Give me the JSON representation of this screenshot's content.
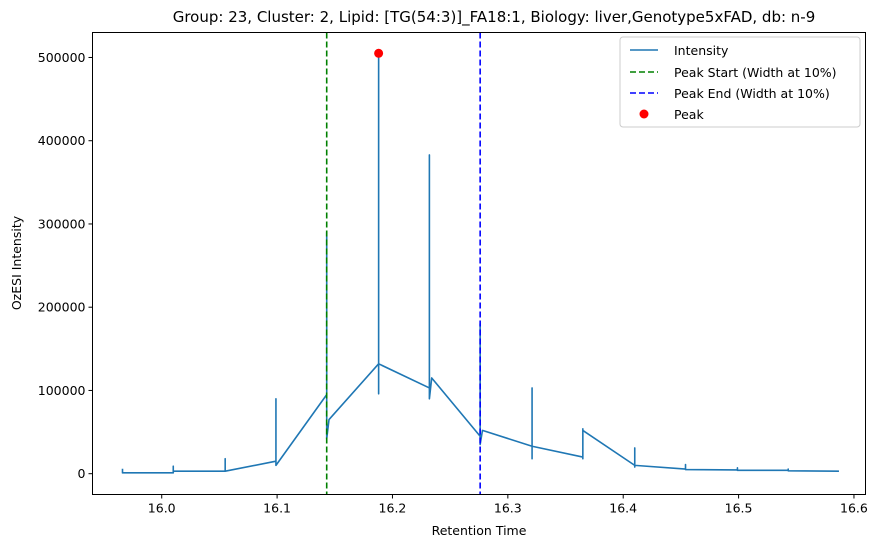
{
  "chart_data": {
    "type": "line",
    "title": "Group: 23, Cluster: 2, Lipid: [TG(54:3)]_FA18:1, Biology: liver,Genotype5xFAD, db: n-9",
    "xlabel": "Retention Time",
    "ylabel": "OzESI Intensity",
    "xlim": [
      15.94,
      16.61
    ],
    "ylim": [
      -25000,
      530000
    ],
    "xticks": [
      16.0,
      16.1,
      16.2,
      16.3,
      16.4,
      16.5,
      16.6
    ],
    "xtick_labels": [
      "16.0",
      "16.1",
      "16.2",
      "16.3",
      "16.4",
      "16.5",
      "16.6"
    ],
    "yticks": [
      0,
      100000,
      200000,
      300000,
      400000,
      500000
    ],
    "ytick_labels": [
      "0",
      "100000",
      "200000",
      "300000",
      "400000",
      "500000"
    ],
    "grid": false,
    "legend_position": "top-right",
    "colors": {
      "intensity": "#1f77b4",
      "peak_start": "#008000",
      "peak_end": "#0000ff",
      "peak": "#ff0000"
    },
    "series": [
      {
        "name": "Intensity",
        "style": "solid",
        "points": [
          [
            15.966,
            6000
          ],
          [
            15.966,
            1000
          ],
          [
            16.01,
            1000
          ],
          [
            16.01,
            9000
          ],
          [
            16.01,
            3000
          ],
          [
            16.055,
            3000
          ],
          [
            16.055,
            18000
          ],
          [
            16.055,
            3000
          ],
          [
            16.099,
            15000
          ],
          [
            16.099,
            90000
          ],
          [
            16.099,
            10000
          ],
          [
            16.143,
            95000
          ],
          [
            16.143,
            290000
          ],
          [
            16.143,
            42000
          ],
          [
            16.145,
            65000
          ],
          [
            16.188,
            132000
          ],
          [
            16.188,
            505000
          ],
          [
            16.188,
            96000
          ],
          [
            16.188,
            132000
          ],
          [
            16.232,
            103000
          ],
          [
            16.232,
            383000
          ],
          [
            16.232,
            90000
          ],
          [
            16.234,
            115000
          ],
          [
            16.276,
            45000
          ],
          [
            16.276,
            180000
          ],
          [
            16.276,
            35000
          ],
          [
            16.278,
            52000
          ],
          [
            16.321,
            33000
          ],
          [
            16.321,
            103000
          ],
          [
            16.321,
            18000
          ],
          [
            16.321,
            33000
          ],
          [
            16.365,
            20000
          ],
          [
            16.365,
            54000
          ],
          [
            16.365,
            18000
          ],
          [
            16.365,
            52000
          ],
          [
            16.41,
            10000
          ],
          [
            16.41,
            31000
          ],
          [
            16.41,
            8000
          ],
          [
            16.41,
            10000
          ],
          [
            16.454,
            5500
          ],
          [
            16.454,
            11000
          ],
          [
            16.454,
            5000
          ],
          [
            16.499,
            4500
          ],
          [
            16.499,
            7000
          ],
          [
            16.499,
            4000
          ],
          [
            16.543,
            4000
          ],
          [
            16.543,
            5500
          ],
          [
            16.543,
            3500
          ],
          [
            16.587,
            3000
          ]
        ]
      }
    ],
    "vlines": [
      {
        "name": "Peak Start (Width at 10%)",
        "x": 16.143,
        "style": "dashed"
      },
      {
        "name": "Peak End (Width at 10%)",
        "x": 16.276,
        "style": "dashed"
      }
    ],
    "markers": [
      {
        "name": "Peak",
        "x": 16.188,
        "y": 505000
      }
    ]
  }
}
